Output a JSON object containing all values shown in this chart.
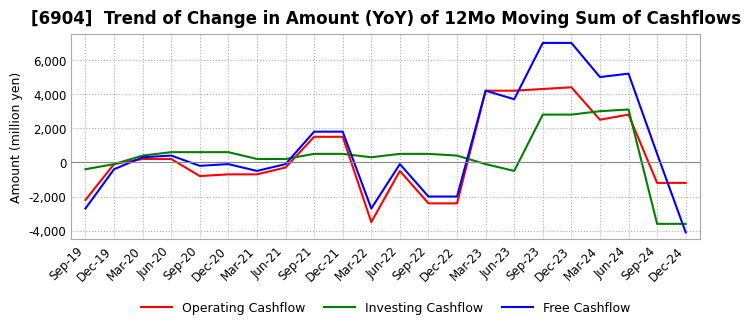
{
  "title": "[6904]  Trend of Change in Amount (YoY) of 12Mo Moving Sum of Cashflows",
  "ylabel": "Amount (million yen)",
  "ylim": [
    -4500,
    7500
  ],
  "yticks": [
    -4000,
    -2000,
    0,
    2000,
    4000,
    6000
  ],
  "x_labels": [
    "Sep-19",
    "Dec-19",
    "Mar-20",
    "Jun-20",
    "Sep-20",
    "Dec-20",
    "Mar-21",
    "Jun-21",
    "Sep-21",
    "Dec-21",
    "Mar-22",
    "Jun-22",
    "Sep-22",
    "Dec-22",
    "Mar-23",
    "Jun-23",
    "Sep-23",
    "Dec-23",
    "Mar-24",
    "Jun-24",
    "Sep-24",
    "Dec-24"
  ],
  "operating": [
    -2200,
    -100,
    200,
    200,
    -800,
    -700,
    -700,
    -300,
    1500,
    1500,
    -3500,
    -500,
    -2400,
    -2400,
    4200,
    4200,
    4300,
    4400,
    2500,
    2800,
    -1200,
    -1200
  ],
  "investing": [
    -400,
    -100,
    400,
    600,
    600,
    600,
    200,
    200,
    500,
    500,
    300,
    500,
    500,
    400,
    -100,
    -500,
    2800,
    2800,
    3000,
    3100,
    -3600,
    -3600
  ],
  "free": [
    -2700,
    -400,
    300,
    400,
    -200,
    -100,
    -500,
    -100,
    1800,
    1800,
    -2700,
    -100,
    -2000,
    -2000,
    4200,
    3700,
    7000,
    7000,
    5000,
    5200,
    500,
    -4100
  ],
  "colors": {
    "operating": "#ff0000",
    "investing": "#008000",
    "free": "#0000ff"
  },
  "legend_labels": [
    "Operating Cashflow",
    "Investing Cashflow",
    "Free Cashflow"
  ],
  "background": "#ffffff",
  "title_fontsize": 12,
  "axis_fontsize": 9,
  "tick_fontsize": 8.5
}
